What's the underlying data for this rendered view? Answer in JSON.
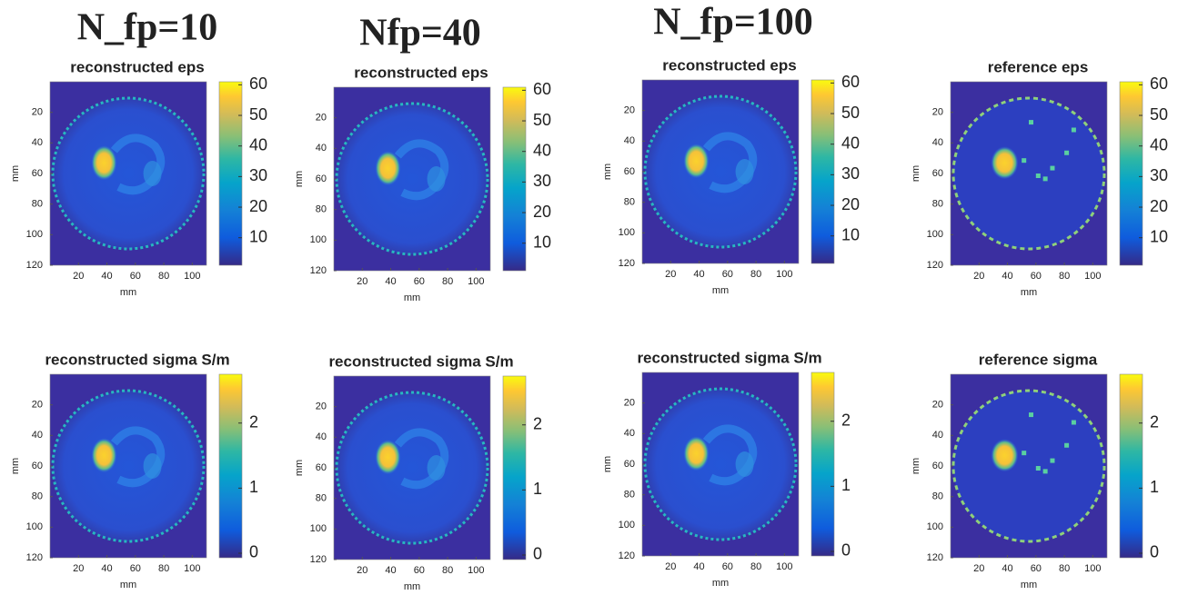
{
  "headings": [
    "N_fp=10",
    "Nfp=40",
    "N_fp=100"
  ],
  "chart_data": [
    {
      "type": "heatmap",
      "title": "reconstructed eps",
      "xlabel": "mm",
      "ylabel": "mm",
      "xlim": [
        0,
        110
      ],
      "ylim": [
        0,
        120
      ],
      "xticks": [
        20,
        40,
        60,
        80,
        100
      ],
      "yticks": [
        20,
        40,
        60,
        80,
        100,
        120
      ],
      "clim": [
        1,
        61
      ],
      "cticks": [
        10,
        20,
        30,
        40,
        50,
        60
      ]
    },
    {
      "type": "heatmap",
      "title": "reconstructed eps",
      "xlabel": "mm",
      "ylabel": "mm",
      "xlim": [
        0,
        110
      ],
      "ylim": [
        0,
        120
      ],
      "xticks": [
        20,
        40,
        60,
        80,
        100
      ],
      "yticks": [
        20,
        40,
        60,
        80,
        100,
        120
      ],
      "clim": [
        1,
        61
      ],
      "cticks": [
        10,
        20,
        30,
        40,
        50,
        60
      ]
    },
    {
      "type": "heatmap",
      "title": "reconstructed eps",
      "xlabel": "mm",
      "ylabel": "mm",
      "xlim": [
        0,
        110
      ],
      "ylim": [
        0,
        120
      ],
      "xticks": [
        20,
        40,
        60,
        80,
        100
      ],
      "yticks": [
        20,
        40,
        60,
        80,
        100,
        120
      ],
      "clim": [
        1,
        61
      ],
      "cticks": [
        10,
        20,
        30,
        40,
        50,
        60
      ]
    },
    {
      "type": "heatmap",
      "title": "reference eps",
      "xlabel": "mm",
      "ylabel": "mm",
      "xlim": [
        0,
        110
      ],
      "ylim": [
        0,
        120
      ],
      "xticks": [
        20,
        40,
        60,
        80,
        100
      ],
      "yticks": [
        20,
        40,
        60,
        80,
        100,
        120
      ],
      "clim": [
        1,
        61
      ],
      "cticks": [
        10,
        20,
        30,
        40,
        50,
        60
      ]
    },
    {
      "type": "heatmap",
      "title": "reconstructed sigma S/m",
      "xlabel": "mm",
      "ylabel": "mm",
      "xlim": [
        0,
        110
      ],
      "ylim": [
        0,
        120
      ],
      "xticks": [
        20,
        40,
        60,
        80,
        100
      ],
      "yticks": [
        20,
        40,
        60,
        80,
        100,
        120
      ],
      "clim": [
        -0.07,
        2.75
      ],
      "cticks": [
        0,
        1,
        2
      ]
    },
    {
      "type": "heatmap",
      "title": "reconstructed sigma S/m",
      "xlabel": "mm",
      "ylabel": "mm",
      "xlim": [
        0,
        110
      ],
      "ylim": [
        0,
        120
      ],
      "xticks": [
        20,
        40,
        60,
        80,
        100
      ],
      "yticks": [
        20,
        40,
        60,
        80,
        100,
        120
      ],
      "clim": [
        -0.07,
        2.75
      ],
      "cticks": [
        0,
        1,
        2
      ]
    },
    {
      "type": "heatmap",
      "title": "reconstructed sigma S/m",
      "xlabel": "mm",
      "ylabel": "mm",
      "xlim": [
        0,
        110
      ],
      "ylim": [
        0,
        120
      ],
      "xticks": [
        20,
        40,
        60,
        80,
        100
      ],
      "yticks": [
        20,
        40,
        60,
        80,
        100,
        120
      ],
      "clim": [
        -0.07,
        2.75
      ],
      "cticks": [
        0,
        1,
        2
      ]
    },
    {
      "type": "heatmap",
      "title": "reference sigma",
      "xlabel": "mm",
      "ylabel": "mm",
      "xlim": [
        0,
        110
      ],
      "ylim": [
        0,
        120
      ],
      "xticks": [
        20,
        40,
        60,
        80,
        100
      ],
      "yticks": [
        20,
        40,
        60,
        80,
        100,
        120
      ],
      "clim": [
        -0.07,
        2.75
      ],
      "cticks": [
        0,
        1,
        2
      ]
    }
  ]
}
